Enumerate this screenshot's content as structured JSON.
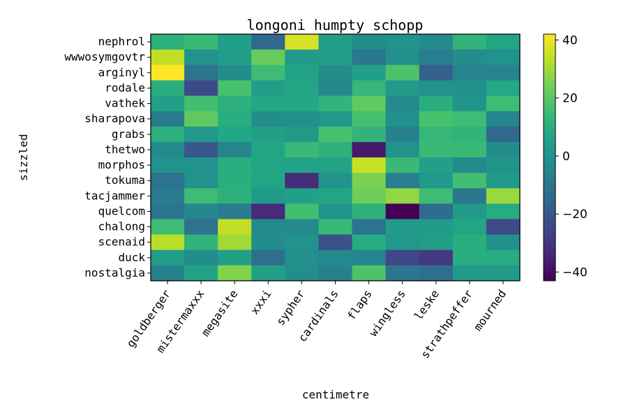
{
  "chart_data": {
    "type": "heatmap",
    "title": "longoni humpty schopp",
    "xlabel": "centimetre",
    "ylabel": "sizzled",
    "columns": [
      "goldberger",
      "mistermaxxx",
      "megasite",
      "xxxi",
      "sypher",
      "cardinals",
      "flaps",
      "wingless",
      "leske",
      "strathpeffer",
      "mourned"
    ],
    "rows": [
      "nephrol",
      "wwwosymgovtr",
      "arginyl",
      "rodale",
      "vathek",
      "sharapova",
      "grabs",
      "thetwo",
      "morphos",
      "tokuma",
      "tacjammer",
      "quelcom",
      "chalong",
      "scenaid",
      "duck",
      "nostalgia"
    ],
    "values": [
      [
        11,
        14,
        5,
        -14,
        37,
        4,
        -2,
        0,
        -3,
        12,
        7
      ],
      [
        34,
        0,
        4,
        22,
        3,
        4,
        -9,
        -1,
        -7,
        -2,
        0
      ],
      [
        42,
        -10,
        -2,
        15,
        6,
        -2,
        5,
        18,
        -17,
        -5,
        -5
      ],
      [
        10,
        -24,
        17,
        4,
        7,
        -4,
        13,
        3,
        0,
        -1,
        8
      ],
      [
        5,
        16,
        11,
        8,
        8,
        12,
        21,
        -3,
        10,
        1,
        15
      ],
      [
        -8,
        21,
        10,
        -2,
        -1,
        2,
        17,
        -1,
        17,
        15,
        -4
      ],
      [
        11,
        2,
        8,
        5,
        3,
        17,
        12,
        -6,
        13,
        12,
        -14
      ],
      [
        -3,
        -20,
        -5,
        7,
        14,
        11,
        -37,
        0,
        14,
        14,
        -2
      ],
      [
        0,
        0,
        10,
        7,
        6,
        6,
        35,
        14,
        5,
        -3,
        1
      ],
      [
        -11,
        0,
        10,
        7,
        -32,
        0,
        25,
        -7,
        2,
        16,
        3
      ],
      [
        -8,
        15,
        11,
        3,
        5,
        7,
        23,
        28,
        15,
        -9,
        29
      ],
      [
        -10,
        -4,
        -8,
        -33,
        16,
        1,
        11,
        -43,
        -13,
        3,
        9
      ],
      [
        15,
        -11,
        34,
        -3,
        -3,
        14,
        -11,
        3,
        3,
        7,
        -24
      ],
      [
        33,
        12,
        30,
        -2,
        0,
        -22,
        9,
        2,
        4,
        10,
        -1
      ],
      [
        4,
        -2,
        5,
        -12,
        -1,
        -3,
        -5,
        -25,
        -29,
        10,
        9
      ],
      [
        -6,
        6,
        26,
        5,
        -2,
        -6,
        18,
        -10,
        -12,
        3,
        3
      ]
    ],
    "colorbar": {
      "colormap": "viridis",
      "vmin": -43,
      "vmax": 42,
      "ticks": [
        -40,
        -20,
        0,
        20,
        40
      ],
      "tick_labels": [
        "−40",
        "−20",
        "0",
        "20",
        "40"
      ]
    },
    "grid": false
  }
}
